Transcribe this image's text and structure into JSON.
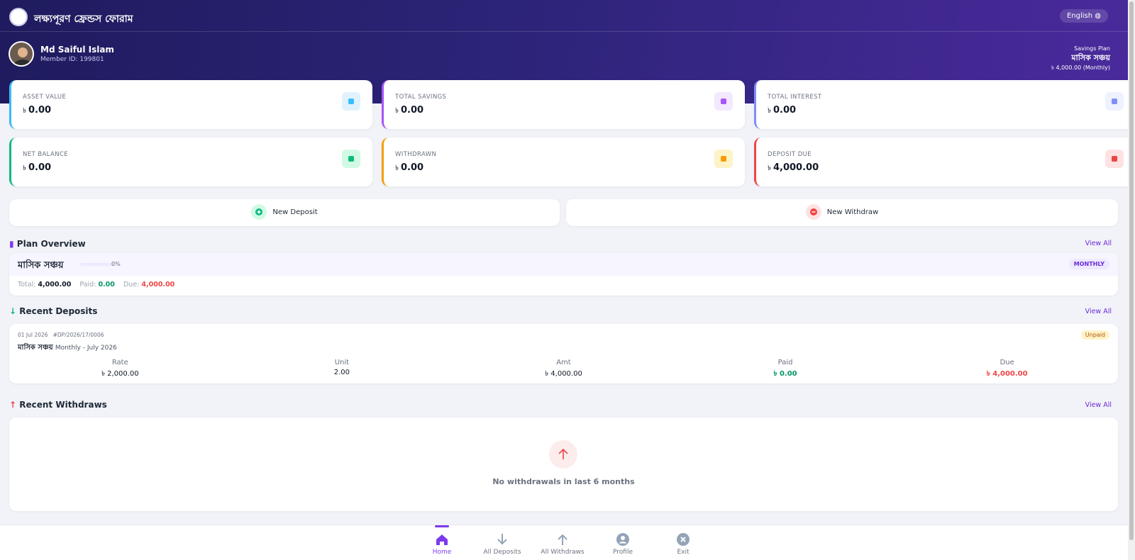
{
  "header": {
    "title": "লক্ষ্যপূরণ ফ্রেন্ডস ফোরাম",
    "language": "English"
  },
  "member": {
    "name": "Md Saiful Islam",
    "member_id": "Member ID: 199801"
  },
  "savings_plan": {
    "label": "Savings Plan",
    "name": "মাসিক সঞ্চয়",
    "amount": "৳ 4,000.00 (Monthly)"
  },
  "stats": [
    {
      "label": "ASSET VALUE",
      "currency": "৳",
      "amount": "0.00"
    },
    {
      "label": "TOTAL SAVINGS",
      "currency": "৳",
      "amount": "0.00"
    },
    {
      "label": "TOTAL INTEREST",
      "currency": "৳",
      "amount": "0.00"
    },
    {
      "label": "NET BALANCE",
      "currency": "৳",
      "amount": "0.00"
    },
    {
      "label": "WITHDRAWN",
      "currency": "৳",
      "amount": "0.00"
    },
    {
      "label": "DEPOSIT DUE",
      "currency": "৳",
      "amount": "4,000.00"
    }
  ],
  "actions": [
    "New Deposit",
    "New Withdraw"
  ],
  "plan_overview": {
    "title": "Plan Overview",
    "view_all": "View All",
    "plan_name": "মাসিক সঞ্চয়",
    "progress": {
      "value": 0,
      "label": "0%"
    },
    "frequency": "MONTHLY",
    "total_label": "Total:",
    "total": "4,000.00",
    "paid_label": "Paid:",
    "paid": "0.00",
    "due_label": "Due:",
    "due": "4,000.00"
  },
  "recent_deposits": {
    "title": "Recent Deposits",
    "view_all": "View All",
    "items": [
      {
        "date": "01 Jul 2026",
        "ref": "#DP/2026/17/0006",
        "plan": "মাসিক সঞ্চয়",
        "period": "Monthly - July 2026",
        "status": "Unpaid",
        "columns": [
          {
            "label": "Rate",
            "value": "৳ 2,000.00"
          },
          {
            "label": "Unit",
            "value": "2.00"
          },
          {
            "label": "Amt",
            "value": "৳ 4,000.00"
          },
          {
            "label": "Paid",
            "value": "৳ 0.00"
          },
          {
            "label": "Due",
            "value": "৳ 4,000.00"
          }
        ]
      }
    ]
  },
  "recent_withdraws": {
    "title": "Recent Withdraws",
    "view_all": "View All",
    "empty": "No withdrawals in last 6 months"
  },
  "nav": [
    "Home",
    "All Deposits",
    "All Withdraws",
    "Profile",
    "Exit"
  ]
}
